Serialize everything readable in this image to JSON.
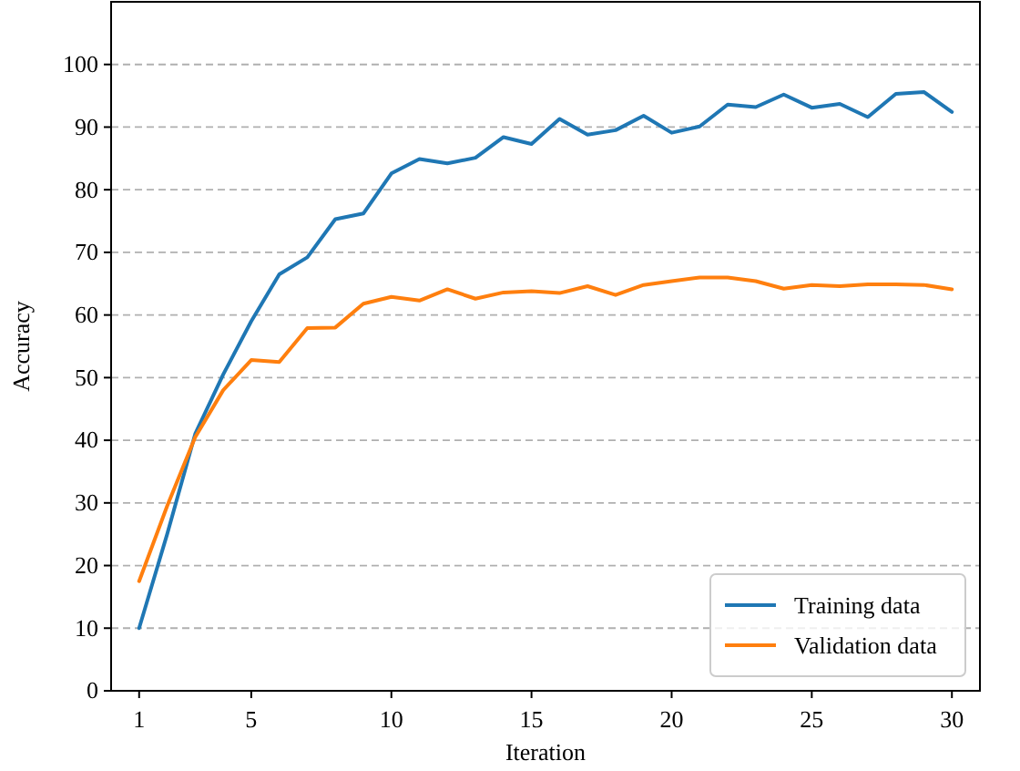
{
  "chart_data": {
    "type": "line",
    "xlabel": "Iteration",
    "ylabel": "Accuracy",
    "x": [
      1,
      2,
      3,
      4,
      5,
      6,
      7,
      8,
      9,
      10,
      11,
      12,
      13,
      14,
      15,
      16,
      17,
      18,
      19,
      20,
      21,
      22,
      23,
      24,
      25,
      26,
      27,
      28,
      29,
      30
    ],
    "series": [
      {
        "name": "Training data",
        "color": "#1f77b4",
        "values": [
          10,
          25,
          41,
          50.5,
          59,
          66.5,
          69.2,
          75.3,
          76.2,
          82.6,
          84.9,
          84.2,
          85.1,
          88.4,
          87.3,
          91.3,
          88.8,
          89.5,
          91.8,
          89.1,
          90.1,
          93.6,
          93.2,
          95.2,
          93.1,
          93.7,
          91.6,
          95.3,
          95.6,
          92.4
        ]
      },
      {
        "name": "Validation data",
        "color": "#ff7f0e",
        "values": [
          17.5,
          29.5,
          40.5,
          48,
          52.8,
          52.5,
          57.9,
          58,
          61.8,
          62.9,
          62.3,
          64.1,
          62.6,
          63.6,
          63.8,
          63.5,
          64.6,
          63.2,
          64.8,
          65.4,
          66,
          66,
          65.4,
          64.2,
          64.8,
          64.6,
          64.9,
          64.9,
          64.8,
          64.1
        ]
      }
    ],
    "xlim": [
      0,
      31
    ],
    "xticks": [
      1,
      5,
      10,
      15,
      20,
      25,
      30
    ],
    "ylim": [
      0,
      110
    ],
    "yticks": [
      0,
      10,
      20,
      30,
      40,
      50,
      60,
      70,
      80,
      90,
      100
    ],
    "grid": "y",
    "legend": "bottom right",
    "line_style": "solid",
    "marker": "none"
  }
}
